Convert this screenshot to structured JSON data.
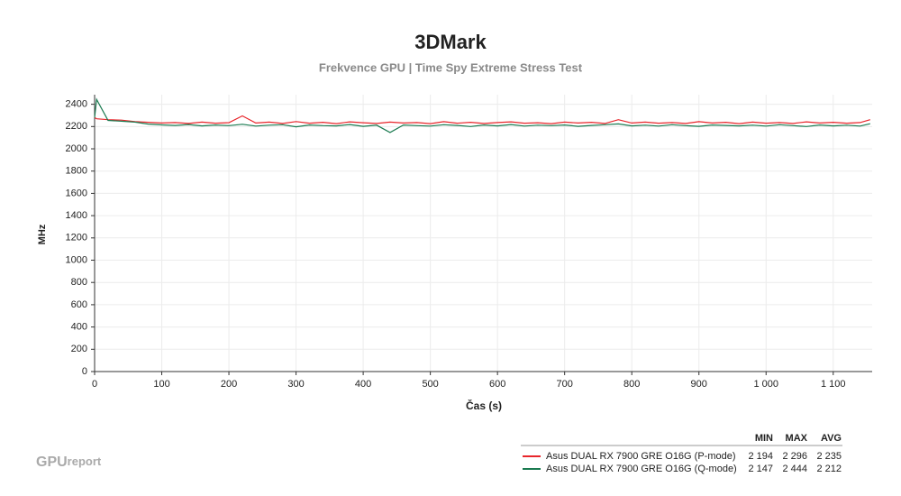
{
  "chart_data": {
    "type": "line",
    "title": "3DMark",
    "subtitle": "Frekvence GPU | Time Spy Extreme Stress Test",
    "x_label": "Čas (s)",
    "y_label": "MHz",
    "x": [
      0,
      3,
      20,
      40,
      60,
      80,
      100,
      120,
      140,
      160,
      180,
      200,
      220,
      240,
      260,
      280,
      300,
      320,
      340,
      360,
      380,
      400,
      420,
      440,
      460,
      480,
      500,
      520,
      540,
      560,
      580,
      600,
      620,
      640,
      660,
      680,
      700,
      720,
      740,
      760,
      780,
      800,
      820,
      840,
      860,
      880,
      900,
      920,
      940,
      960,
      980,
      1000,
      1020,
      1040,
      1060,
      1080,
      1100,
      1120,
      1140,
      1155
    ],
    "series": [
      {
        "name": "Asus DUAL RX 7900 GRE O16G (P-mode)",
        "color": "#e8262b",
        "values": [
          2280,
          2270,
          2262,
          2258,
          2245,
          2238,
          2232,
          2236,
          2228,
          2240,
          2230,
          2235,
          2296,
          2232,
          2240,
          2228,
          2245,
          2230,
          2238,
          2226,
          2242,
          2234,
          2228,
          2240,
          2232,
          2236,
          2226,
          2244,
          2230,
          2238,
          2228,
          2236,
          2242,
          2230,
          2234,
          2226,
          2240,
          2232,
          2238,
          2228,
          2262,
          2232,
          2240,
          2230,
          2236,
          2228,
          2244,
          2232,
          2238,
          2226,
          2240,
          2230,
          2236,
          2228,
          2242,
          2232,
          2238,
          2230,
          2236,
          2262
        ],
        "stats": [
          "2 194",
          "2 296",
          "2 235"
        ]
      },
      {
        "name": "Asus DUAL RX 7900 GRE O16G (Q-mode)",
        "color": "#1a7a50",
        "values": [
          2280,
          2444,
          2255,
          2248,
          2240,
          2222,
          2215,
          2210,
          2218,
          2206,
          2214,
          2208,
          2220,
          2204,
          2212,
          2216,
          2198,
          2214,
          2208,
          2206,
          2218,
          2202,
          2212,
          2147,
          2214,
          2208,
          2204,
          2216,
          2210,
          2200,
          2214,
          2206,
          2218,
          2204,
          2212,
          2208,
          2214,
          2202,
          2210,
          2216,
          2224,
          2206,
          2212,
          2204,
          2216,
          2208,
          2202,
          2214,
          2210,
          2206,
          2212,
          2204,
          2216,
          2208,
          2200,
          2214,
          2206,
          2212,
          2204,
          2225
        ],
        "stats": [
          "2 147",
          "2 444",
          "2 212"
        ]
      }
    ],
    "stats_headers": [
      "MIN",
      "MAX",
      "AVG"
    ],
    "xlim": [
      0,
      1158
    ],
    "ylim": [
      0,
      2486
    ],
    "xticks": [
      0,
      100,
      200,
      300,
      400,
      500,
      600,
      700,
      800,
      900,
      {
        "value": 1000,
        "label": "1 000"
      },
      {
        "value": 1100,
        "label": "1 100"
      }
    ],
    "yticks": [
      0,
      200,
      400,
      600,
      800,
      1000,
      1200,
      1400,
      1600,
      1800,
      2000,
      2200,
      2400
    ],
    "grid": true,
    "watermark": [
      "GPU",
      "report"
    ]
  }
}
